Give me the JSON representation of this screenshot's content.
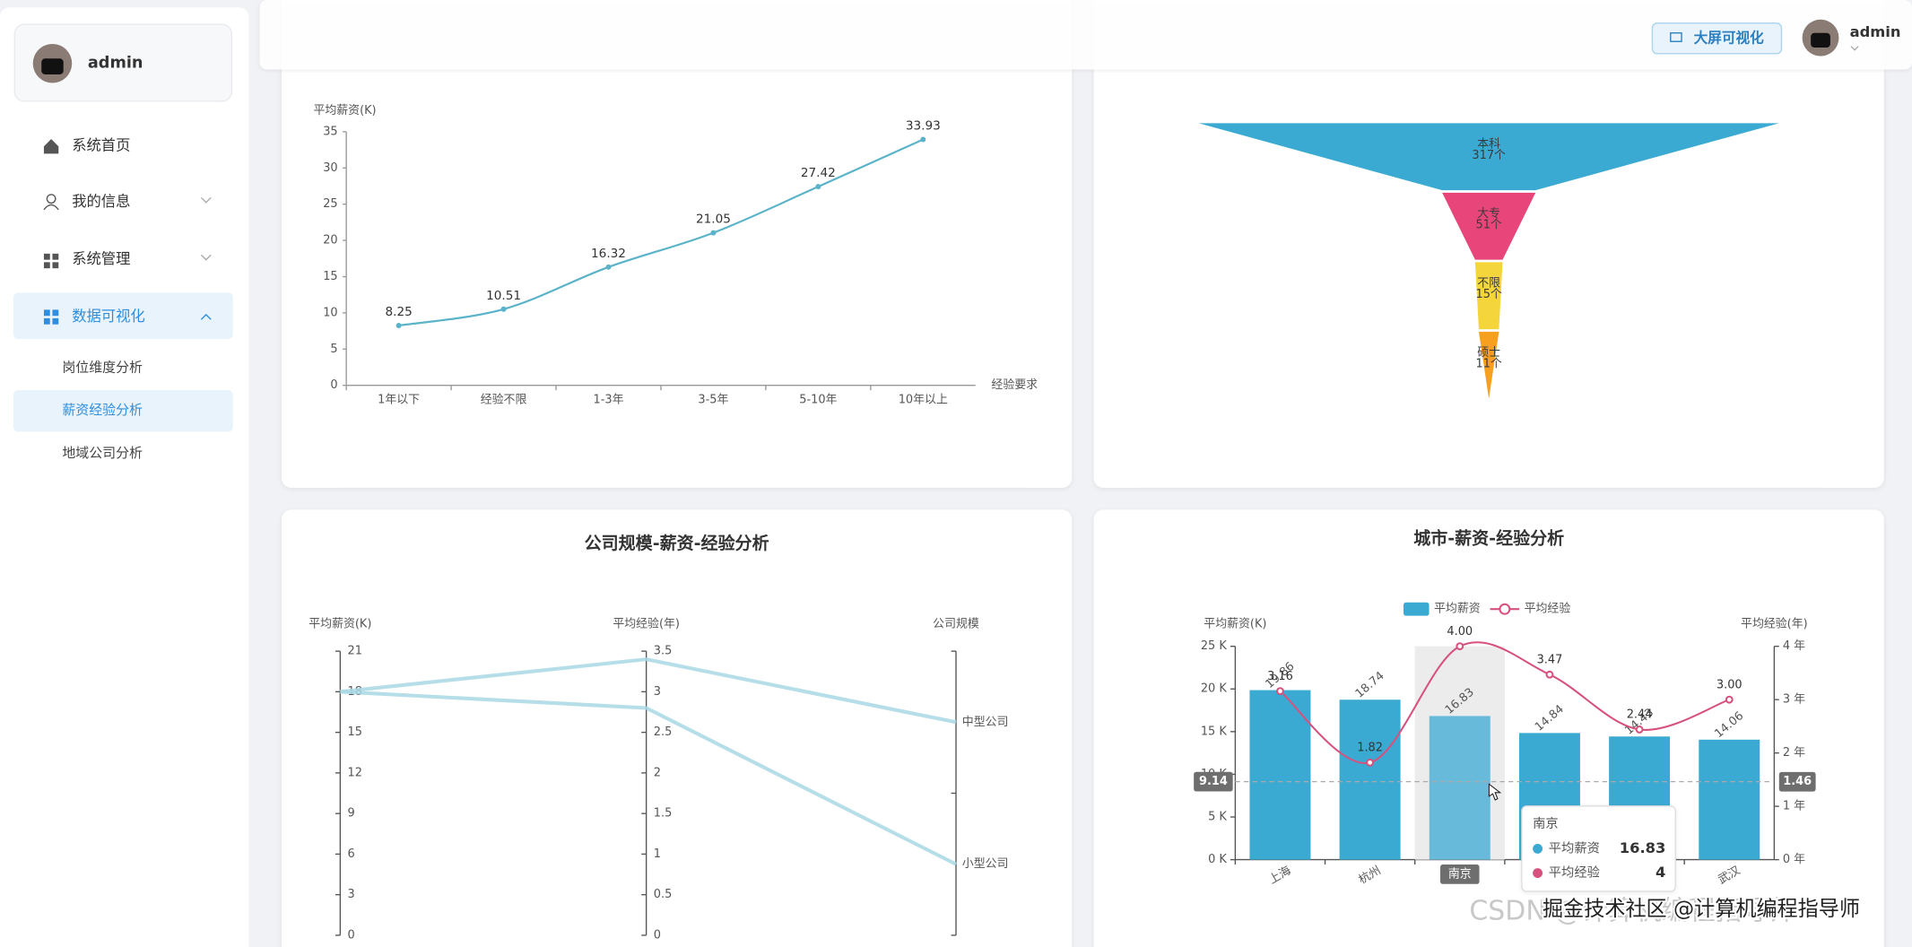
{
  "sidebar": {
    "user": "admin",
    "menu": [
      "系统首页",
      "我的信息",
      "系统管理",
      "数据可视化"
    ],
    "submenu": [
      "岗位维度分析",
      "薪资经验分析",
      "地域公司分析"
    ]
  },
  "header": {
    "button": "大屏可视化",
    "user": "admin"
  },
  "chart_data": [
    {
      "type": "line",
      "y_label": "平均薪资(K)",
      "x_label": "经验要求",
      "categories": [
        "1年以下",
        "经验不限",
        "1-3年",
        "3-5年",
        "5-10年",
        "10年以上"
      ],
      "values": [
        8.25,
        10.51,
        16.32,
        21.05,
        27.42,
        33.93
      ],
      "color": "#5ab3c9",
      "ylim": [
        0,
        35
      ],
      "yticks": [
        0,
        5,
        10,
        15,
        20,
        25,
        30,
        35
      ]
    },
    {
      "type": "funnel",
      "categories": [
        "本科",
        "大专",
        "不限",
        "硕士"
      ],
      "values": [
        317,
        51,
        15,
        11
      ],
      "value_labels": [
        "317个",
        "51个",
        "15个",
        "11个"
      ],
      "colors": [
        "#3baad3",
        "#e8467a",
        "#f4d63c",
        "#f7a01f"
      ]
    },
    {
      "type": "parallel",
      "title": "公司规模-薪资-经验分析",
      "color": "#a8d8e4",
      "axes": [
        {
          "name": "平均薪资(K)",
          "ylim": [
            0,
            21
          ],
          "yticks": [
            0,
            3,
            6,
            9,
            12,
            15,
            18,
            21
          ]
        },
        {
          "name": "平均经验(年)",
          "ylim": [
            0,
            3.5
          ],
          "yticks": [
            0,
            0.5,
            1,
            1.5,
            2,
            2.5,
            3,
            3.5
          ]
        },
        {
          "name": "公司规模",
          "categories": [
            "小型公司",
            "中型公司"
          ]
        }
      ],
      "lines": [
        {
          "values": [
            18,
            3.4,
            "中型公司"
          ]
        },
        {
          "values": [
            18,
            2.8,
            "小型公司"
          ]
        }
      ]
    },
    {
      "type": "bar-line",
      "title": "城市-薪资-经验分析",
      "y_label": "平均薪资(K)",
      "y2_label": "平均经验(年)",
      "categories": [
        "上海",
        "杭州",
        "南京",
        null,
        null,
        "武汉"
      ],
      "series": [
        {
          "name": "平均薪资",
          "type": "bar",
          "color": "#3baad3",
          "values": [
            19.86,
            18.74,
            16.83,
            14.84,
            14.43,
            14.06
          ]
        },
        {
          "name": "平均经验",
          "type": "line",
          "axis": "y2",
          "color": "#d6517d",
          "values": [
            3.16,
            1.82,
            4,
            3.47,
            2.44,
            3
          ],
          "value_labels": [
            "3.16",
            "1.82",
            "4.00",
            "3.47",
            "2.44",
            "3.00"
          ]
        }
      ],
      "ylim": [
        0,
        25
      ],
      "yticks": [
        {
          "value": 0,
          "label": "0 K"
        },
        {
          "value": 5,
          "label": "5 K"
        },
        {
          "value": 10,
          "label": "10 K"
        },
        {
          "value": 15,
          "label": "15 K"
        },
        {
          "value": 20,
          "label": "20 K"
        },
        {
          "value": 25,
          "label": "25 K"
        }
      ],
      "y2lim": [
        0,
        4
      ],
      "y2ticks": [
        {
          "value": 0,
          "label": "0 年"
        },
        {
          "value": 1,
          "label": "1 年"
        },
        {
          "value": 2,
          "label": "2 年"
        },
        {
          "value": 3,
          "label": "3 年"
        },
        {
          "value": 4,
          "label": "4 年"
        }
      ],
      "tooltip": {
        "category": "南京"
      },
      "pointer": {
        "y": 9.14,
        "y2": 1.46
      }
    }
  ],
  "watermark": [
    "CSDN @计算机编程指导师",
    "掘金技术社区 @计算机编程指导师"
  ]
}
